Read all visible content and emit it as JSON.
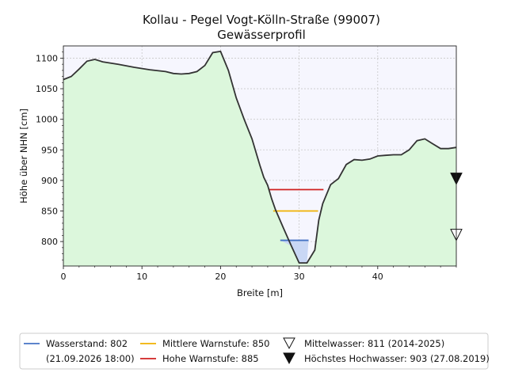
{
  "chart_data": {
    "type": "area",
    "title": "Kollau - Pegel Vogt-Kölln-Straße (99007)",
    "subtitle": "Gewässerprofil",
    "xlabel": "Breite [m]",
    "ylabel": "Höhe über NHN [cm]",
    "xlim": [
      0,
      50
    ],
    "ylim": [
      760,
      1120
    ],
    "xticks": [
      0,
      10,
      20,
      30,
      40
    ],
    "yticks": [
      800,
      850,
      900,
      950,
      1000,
      1050,
      1100
    ],
    "grid": true,
    "profile": {
      "x": [
        0,
        1,
        2,
        3,
        4,
        5,
        7,
        9,
        11,
        13,
        14,
        15,
        16,
        17,
        18,
        19,
        20,
        21,
        22,
        23,
        24,
        25,
        25.5,
        26,
        26.5,
        27,
        28,
        29,
        30,
        31,
        32,
        32.5,
        33,
        34,
        34.5,
        35,
        36,
        37,
        38,
        39,
        40,
        41,
        42,
        43,
        44,
        45,
        46,
        47,
        48,
        49,
        50
      ],
      "y": [
        1065,
        1070,
        1082,
        1095,
        1098,
        1094,
        1090,
        1085,
        1081,
        1078,
        1075,
        1074,
        1075,
        1078,
        1088,
        1109,
        1111,
        1080,
        1035,
        1000,
        968,
        925,
        905,
        892,
        870,
        852,
        822,
        793,
        765,
        765,
        786,
        835,
        862,
        893,
        898,
        903,
        926,
        934,
        933,
        935,
        940,
        941,
        942,
        942,
        950,
        965,
        968,
        960,
        952,
        952,
        954
      ]
    },
    "water_level": {
      "value": 802,
      "label": "Wasserstand: 802",
      "date": "(21.09.2026 18:00)",
      "color": "#4472c4",
      "x_range": [
        27.6,
        31.2
      ]
    },
    "thresholds": [
      {
        "label": "Mittlere Warnstufe: 850",
        "value": 850,
        "color": "#f0b000",
        "x_range": [
          26.7,
          32.4
        ]
      },
      {
        "label": "Hohe Warnstufe: 885",
        "value": 885,
        "color": "#d02020",
        "x_range": [
          26.1,
          33.1
        ]
      }
    ],
    "markers": [
      {
        "label": "Mittelwasser: 811 (2014-2025)",
        "value": 811,
        "style": "hollow-down-triangle"
      },
      {
        "label": "Höchstes Hochwasser: 903 (27.08.2019)",
        "value": 903,
        "style": "filled-down-triangle"
      }
    ],
    "colors": {
      "ground": "#dcf7dc",
      "sky": "#f6f6fe",
      "profile_line": "#333333",
      "water_fill": "#c9d7f5"
    },
    "legend_placement": "bottom"
  }
}
